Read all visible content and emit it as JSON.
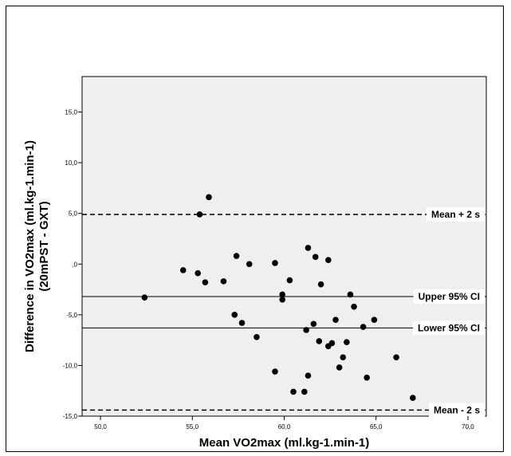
{
  "chart_data": {
    "type": "scatter",
    "xlabel": "Mean VO2max (ml.kg-1.min-1)",
    "ylabel_line1": "Difference in VO2max (ml.kg-1.min-1)",
    "ylabel_line2": "(20mPST - GXT)",
    "xlim": [
      49,
      71
    ],
    "ylim": [
      -15,
      18.5
    ],
    "x_ticks": [
      {
        "value": 50,
        "label": "50,0"
      },
      {
        "value": 55,
        "label": "55,0"
      },
      {
        "value": 60,
        "label": "60,0"
      },
      {
        "value": 65,
        "label": "65,0"
      },
      {
        "value": 70,
        "label": "70,0"
      }
    ],
    "y_ticks": [
      {
        "value": -15,
        "label": "-15,0"
      },
      {
        "value": -10,
        "label": "-10,0"
      },
      {
        "value": -5,
        "label": "-5,0"
      },
      {
        "value": 0,
        "label": ",0"
      },
      {
        "value": 5,
        "label": "5,0"
      },
      {
        "value": 10,
        "label": "10,0"
      },
      {
        "value": 15,
        "label": "15,0"
      }
    ],
    "grid": false,
    "plot_background": "#efefef",
    "point_color": "#000000",
    "reference_lines": [
      {
        "label": "Mean + 2 s",
        "y": 4.9,
        "style": "dashed"
      },
      {
        "label": "Upper 95% CI",
        "y": -3.2,
        "style": "solid"
      },
      {
        "label": "Lower 95% CI",
        "y": -6.3,
        "style": "solid"
      },
      {
        "label": "Mean - 2 s",
        "y": -14.4,
        "style": "dashed"
      }
    ],
    "points": [
      {
        "x": 52.4,
        "y": -3.3
      },
      {
        "x": 54.5,
        "y": -0.6
      },
      {
        "x": 55.3,
        "y": -0.9
      },
      {
        "x": 55.4,
        "y": 4.9
      },
      {
        "x": 55.7,
        "y": -1.8
      },
      {
        "x": 55.9,
        "y": 6.6
      },
      {
        "x": 56.7,
        "y": -1.7
      },
      {
        "x": 57.3,
        "y": -5.0
      },
      {
        "x": 57.4,
        "y": 0.8
      },
      {
        "x": 57.7,
        "y": -5.8
      },
      {
        "x": 58.1,
        "y": 0.0
      },
      {
        "x": 58.5,
        "y": -7.2
      },
      {
        "x": 59.5,
        "y": 0.1
      },
      {
        "x": 59.5,
        "y": -10.6
      },
      {
        "x": 59.9,
        "y": -3.0
      },
      {
        "x": 59.9,
        "y": -3.5
      },
      {
        "x": 60.3,
        "y": -1.6
      },
      {
        "x": 60.5,
        "y": -12.6
      },
      {
        "x": 61.1,
        "y": -12.6
      },
      {
        "x": 61.2,
        "y": -6.5
      },
      {
        "x": 61.3,
        "y": 1.6
      },
      {
        "x": 61.3,
        "y": -11.0
      },
      {
        "x": 61.6,
        "y": -5.9
      },
      {
        "x": 61.7,
        "y": 0.7
      },
      {
        "x": 61.9,
        "y": -7.6
      },
      {
        "x": 62.0,
        "y": -2.0
      },
      {
        "x": 62.4,
        "y": 0.4
      },
      {
        "x": 62.4,
        "y": -8.1
      },
      {
        "x": 62.6,
        "y": -7.8
      },
      {
        "x": 62.8,
        "y": -5.5
      },
      {
        "x": 63.0,
        "y": -10.2
      },
      {
        "x": 63.2,
        "y": -9.2
      },
      {
        "x": 63.4,
        "y": -7.7
      },
      {
        "x": 63.6,
        "y": -3.0
      },
      {
        "x": 63.8,
        "y": -4.2
      },
      {
        "x": 64.3,
        "y": -6.2
      },
      {
        "x": 64.5,
        "y": -11.2
      },
      {
        "x": 64.9,
        "y": -5.5
      },
      {
        "x": 66.1,
        "y": -9.2
      },
      {
        "x": 67.0,
        "y": -13.2
      }
    ]
  }
}
